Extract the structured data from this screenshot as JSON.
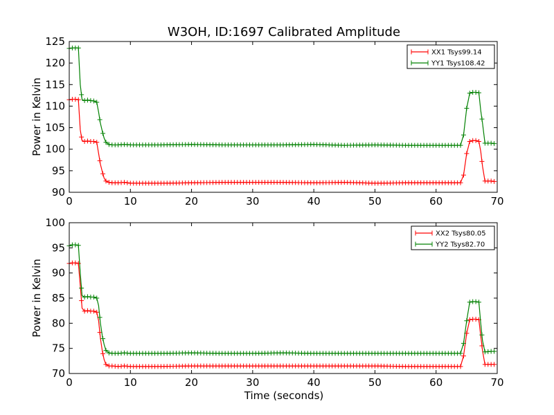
{
  "title": "W3OH, ID:1697 Calibrated Amplitude",
  "xlabel": "Time (seconds)",
  "chart_data": [
    {
      "type": "line",
      "ylabel": "Power in Kelvin",
      "xlim": [
        0,
        70
      ],
      "ylim": [
        90,
        125
      ],
      "xticks": [
        0,
        10,
        20,
        30,
        40,
        50,
        60,
        70
      ],
      "yticks": [
        90,
        95,
        100,
        105,
        110,
        115,
        120,
        125
      ],
      "legend": "top-right",
      "series": [
        {
          "name": "XX1 Tsys99.14",
          "color": "#ff0000",
          "x": [
            0,
            0.5,
            1,
            1.5,
            1.8,
            2.1,
            2.5,
            3,
            3.5,
            4,
            4.5,
            4.8,
            5.1,
            5.4,
            5.7,
            6,
            6.5,
            7,
            8,
            9,
            10,
            15,
            20,
            25,
            30,
            35,
            40,
            45,
            50,
            55,
            60,
            63,
            64,
            64.5,
            65,
            65.5,
            66,
            66.5,
            67,
            67.3,
            67.6,
            68,
            69,
            69.5
          ],
          "y": [
            111.5,
            111.6,
            111.6,
            111.5,
            104.5,
            102.0,
            101.8,
            101.9,
            101.8,
            101.8,
            101.6,
            99.0,
            96.5,
            94.8,
            93.3,
            92.6,
            92.3,
            92.2,
            92.2,
            92.3,
            92.1,
            92.1,
            92.2,
            92.3,
            92.3,
            92.3,
            92.2,
            92.3,
            92.1,
            92.2,
            92.2,
            92.2,
            92.2,
            94.0,
            99.0,
            101.8,
            102.0,
            102.0,
            101.8,
            99.5,
            96.0,
            92.6,
            92.6,
            92.5
          ]
        },
        {
          "name": "YY1 Tsys108.42",
          "color": "#008000",
          "x": [
            0,
            0.5,
            1,
            1.5,
            1.8,
            2.1,
            2.5,
            3,
            3.5,
            4,
            4.5,
            4.8,
            5.1,
            5.4,
            5.7,
            6,
            6.5,
            7,
            8,
            9,
            10,
            15,
            20,
            25,
            30,
            35,
            40,
            45,
            50,
            55,
            60,
            63,
            64,
            64.5,
            65,
            65.5,
            66,
            66.5,
            67,
            67.3,
            67.6,
            68,
            69,
            69.5
          ],
          "y": [
            123.4,
            123.5,
            123.5,
            123.5,
            115.0,
            111.5,
            111.3,
            111.4,
            111.3,
            111.2,
            110.9,
            108.6,
            106.0,
            104.2,
            102.6,
            101.6,
            101.1,
            101.0,
            101.0,
            101.1,
            101.0,
            101.0,
            101.1,
            101.0,
            101.0,
            101.0,
            101.1,
            100.9,
            101.0,
            100.9,
            100.9,
            100.9,
            100.9,
            103.3,
            109.5,
            113.0,
            113.2,
            113.2,
            113.1,
            109.0,
            106.0,
            101.4,
            101.4,
            101.3
          ]
        }
      ]
    },
    {
      "type": "line",
      "ylabel": "Power in Kelvin",
      "xlim": [
        0,
        70
      ],
      "ylim": [
        70,
        100
      ],
      "xticks": [
        0,
        10,
        20,
        30,
        40,
        50,
        60,
        70
      ],
      "yticks": [
        70,
        75,
        80,
        85,
        90,
        95,
        100
      ],
      "legend": "top-right",
      "series": [
        {
          "name": "XX2 Tsys80.05",
          "color": "#ff0000",
          "x": [
            0,
            0.5,
            1,
            1.5,
            1.8,
            2.1,
            2.5,
            3,
            3.5,
            4,
            4.5,
            4.8,
            5.1,
            5.4,
            5.7,
            6,
            6.5,
            7,
            8,
            9,
            10,
            15,
            20,
            25,
            30,
            35,
            40,
            45,
            50,
            55,
            60,
            63,
            64,
            64.5,
            65,
            65.5,
            66,
            66.5,
            67,
            67.3,
            67.6,
            68,
            69,
            69.5
          ],
          "y": [
            91.9,
            92.0,
            92.0,
            91.9,
            87.5,
            83.0,
            82.4,
            82.5,
            82.4,
            82.4,
            82.2,
            80.5,
            77.0,
            74.5,
            72.8,
            71.8,
            71.5,
            71.5,
            71.4,
            71.5,
            71.4,
            71.4,
            71.5,
            71.5,
            71.5,
            71.5,
            71.5,
            71.5,
            71.5,
            71.4,
            71.4,
            71.4,
            71.4,
            73.5,
            78.0,
            80.7,
            80.8,
            80.8,
            80.7,
            77.5,
            74.5,
            71.8,
            71.8,
            71.8
          ]
        },
        {
          "name": "YY2 Tsys82.70",
          "color": "#008000",
          "x": [
            0,
            0.5,
            1,
            1.5,
            1.8,
            2.1,
            2.5,
            3,
            3.5,
            4,
            4.5,
            4.8,
            5.1,
            5.4,
            5.7,
            6,
            6.5,
            7,
            8,
            9,
            10,
            15,
            20,
            25,
            30,
            35,
            40,
            45,
            50,
            55,
            60,
            63,
            64,
            64.5,
            65,
            65.5,
            66,
            66.5,
            67,
            67.3,
            67.6,
            68,
            69,
            69.5
          ],
          "y": [
            95.4,
            95.6,
            95.6,
            95.5,
            90.0,
            85.5,
            85.2,
            85.3,
            85.2,
            85.2,
            85.0,
            83.5,
            80.0,
            77.5,
            75.8,
            74.6,
            74.1,
            74.0,
            74.0,
            74.1,
            74.0,
            74.0,
            74.1,
            74.0,
            74.0,
            74.1,
            74.0,
            74.0,
            74.0,
            74.0,
            74.0,
            74.0,
            74.0,
            76.0,
            80.5,
            84.2,
            84.3,
            84.3,
            84.2,
            80.0,
            76.5,
            74.3,
            74.4,
            74.4
          ]
        }
      ]
    }
  ]
}
